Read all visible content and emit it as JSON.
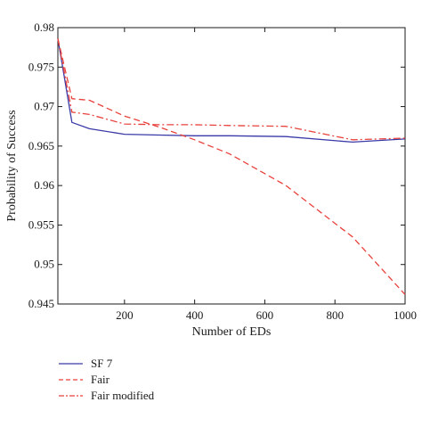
{
  "chart_data": {
    "type": "line",
    "title": "",
    "xlabel": "Number of EDs",
    "ylabel": "Probability of Success",
    "xlim": [
      10,
      1000
    ],
    "ylim": [
      0.945,
      0.98
    ],
    "xticks": [
      200,
      400,
      600,
      800,
      1000
    ],
    "yticks": [
      0.945,
      0.95,
      0.955,
      0.96,
      0.965,
      0.97,
      0.975,
      0.98
    ],
    "xtick_labels": [
      "200",
      "400",
      "600",
      "800",
      "1000"
    ],
    "ytick_labels": [
      "0.945",
      "0.95",
      "0.955",
      "0.96",
      "0.965",
      "0.97",
      "0.975",
      "0.98"
    ],
    "grid": false,
    "legend_position": "bottom-left, below plot",
    "series": [
      {
        "name": "SF 7",
        "color": "#3a3aa8",
        "dash": "solid",
        "x": [
          10,
          50,
          100,
          200,
          300,
          400,
          500,
          660,
          850,
          1000
        ],
        "y": [
          0.9786,
          0.968,
          0.9672,
          0.9665,
          0.9664,
          0.9663,
          0.9663,
          0.9662,
          0.9655,
          0.9659
        ]
      },
      {
        "name": "Fair",
        "color": "#e8423c",
        "dash": "dashed",
        "x": [
          10,
          50,
          100,
          200,
          300,
          400,
          500,
          660,
          850,
          1000
        ],
        "y": [
          0.9786,
          0.971,
          0.9708,
          0.9688,
          0.9674,
          0.9658,
          0.964,
          0.96,
          0.9535,
          0.9462
        ]
      },
      {
        "name": "Fair modified",
        "color": "#e8423c",
        "dash": "dashdot",
        "x": [
          10,
          50,
          100,
          200,
          300,
          400,
          500,
          660,
          850,
          1000
        ],
        "y": [
          0.9786,
          0.9693,
          0.969,
          0.9678,
          0.9677,
          0.9677,
          0.9676,
          0.9675,
          0.9658,
          0.966
        ]
      }
    ]
  }
}
